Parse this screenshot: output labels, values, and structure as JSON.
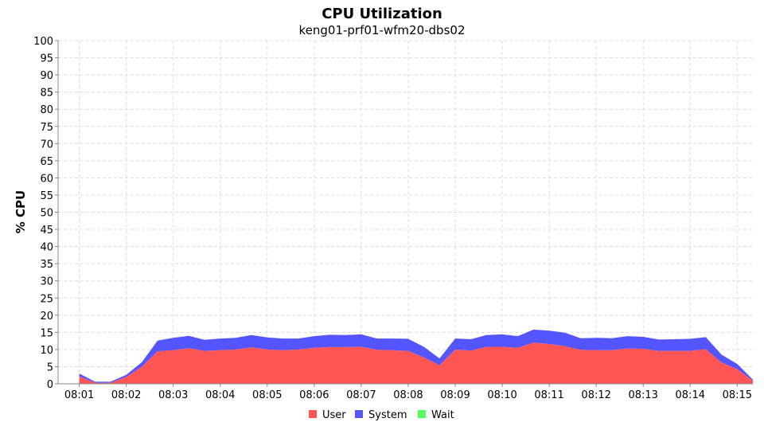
{
  "chart_data": {
    "type": "area",
    "title": "CPU Utilization",
    "subtitle": "keng01-prf01-wfm20-dbs02",
    "ylabel": "% CPU",
    "xlabel": "",
    "ylim": [
      0,
      100
    ],
    "yticks": [
      0,
      5,
      10,
      15,
      20,
      25,
      30,
      35,
      40,
      45,
      50,
      55,
      60,
      65,
      70,
      75,
      80,
      85,
      90,
      95,
      100
    ],
    "stacked": true,
    "grid": true,
    "legend_position": "bottom",
    "xticks": [
      "08:01",
      "08:02",
      "08:03",
      "08:04",
      "08:05",
      "08:06",
      "08:07",
      "08:08",
      "08:09",
      "08:10",
      "08:11",
      "08:12",
      "08:13",
      "08:14",
      "08:15"
    ],
    "x": [
      "08:01:00",
      "08:01:20",
      "08:01:40",
      "08:02:00",
      "08:02:20",
      "08:02:40",
      "08:03:00",
      "08:03:20",
      "08:03:40",
      "08:04:00",
      "08:04:20",
      "08:04:40",
      "08:05:00",
      "08:05:20",
      "08:05:40",
      "08:06:00",
      "08:06:20",
      "08:06:40",
      "08:07:00",
      "08:07:20",
      "08:07:40",
      "08:08:00",
      "08:08:20",
      "08:08:40",
      "08:09:00",
      "08:09:20",
      "08:09:40",
      "08:10:00",
      "08:10:20",
      "08:10:40",
      "08:11:00",
      "08:11:20",
      "08:11:40",
      "08:12:00",
      "08:12:20",
      "08:12:40",
      "08:13:00",
      "08:13:20",
      "08:13:40",
      "08:14:00",
      "08:14:20",
      "08:14:40",
      "08:15:00",
      "08:15:20"
    ],
    "series": [
      {
        "name": "User",
        "color": "#ff5555",
        "values": [
          2.2,
          0.3,
          0.3,
          2.0,
          5.0,
          9.5,
          9.8,
          10.4,
          9.6,
          9.8,
          10.0,
          10.6,
          10.0,
          9.8,
          10.0,
          10.5,
          10.7,
          10.7,
          10.8,
          9.9,
          9.8,
          9.6,
          7.7,
          5.4,
          10.0,
          9.7,
          10.8,
          10.8,
          10.5,
          12.0,
          11.6,
          11.0,
          9.9,
          9.8,
          9.8,
          10.3,
          10.2,
          9.6,
          9.6,
          9.6,
          10.1,
          6.2,
          4.3,
          0.9
        ]
      },
      {
        "name": "System",
        "color": "#5555ff",
        "values": [
          0.8,
          0.3,
          0.3,
          0.6,
          1.3,
          3.1,
          3.6,
          3.6,
          3.2,
          3.4,
          3.4,
          3.6,
          3.5,
          3.4,
          3.2,
          3.4,
          3.6,
          3.5,
          3.6,
          3.3,
          3.4,
          3.5,
          3.1,
          2.0,
          3.2,
          3.3,
          3.4,
          3.6,
          3.4,
          3.8,
          3.9,
          3.9,
          3.4,
          3.6,
          3.5,
          3.6,
          3.5,
          3.3,
          3.4,
          3.5,
          3.5,
          2.3,
          1.5,
          0.3
        ]
      },
      {
        "name": "Wait",
        "color": "#55ff55",
        "values": [
          0,
          0,
          0,
          0,
          0,
          0,
          0,
          0,
          0,
          0,
          0,
          0,
          0,
          0,
          0,
          0,
          0,
          0,
          0,
          0,
          0,
          0,
          0,
          0,
          0,
          0,
          0,
          0,
          0,
          0,
          0,
          0,
          0,
          0,
          0,
          0,
          0,
          0,
          0,
          0,
          0,
          0,
          0,
          0
        ]
      }
    ]
  }
}
